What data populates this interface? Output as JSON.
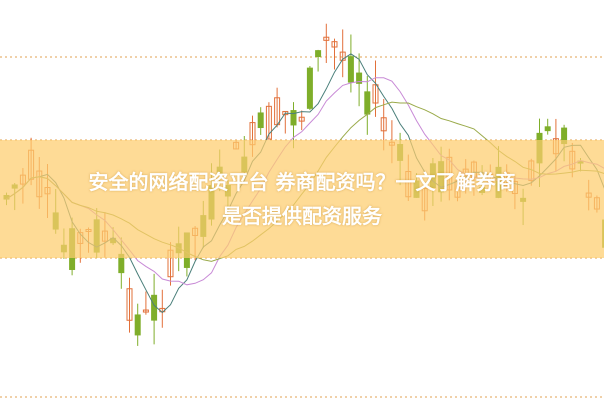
{
  "title": {
    "line1": "安全的网络配资平台 券商配资吗？一文了解券商",
    "line2": "是否提供配资服务"
  },
  "colors": {
    "up": "#e2703a",
    "down": "#7fae2a",
    "ma_short": "#4a7f7a",
    "ma_mid": "#c88ad6",
    "ma_long": "#9aaa4a",
    "band": "#fdcd6e",
    "grid": "#e0a050"
  }
}
